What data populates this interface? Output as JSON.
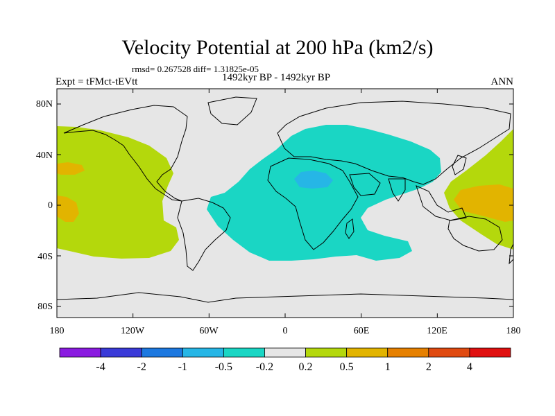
{
  "header": {
    "title": "Velocity Potential at 200 hPa (km2/s)",
    "stats": "rmsd= 0.267528 diff= 1.31825e-05",
    "experiment": "Expt = tFMct-tEVtt",
    "period": "1492kyr BP - 1492kyr BP",
    "season": "ANN"
  },
  "axes": {
    "lat_ticks": [
      "80N",
      "40N",
      "0",
      "40S",
      "80S"
    ],
    "lon_ticks": [
      "180",
      "120W",
      "60W",
      "0",
      "60E",
      "120E",
      "180"
    ]
  },
  "colorbar": {
    "colors": [
      "#8a1be0",
      "#3a3ad8",
      "#1c78e0",
      "#26b6e6",
      "#1ad6c4",
      "#e6e6e6",
      "#b4d80c",
      "#e2b400",
      "#e68000",
      "#e04a10",
      "#e01010"
    ],
    "labels": [
      "-4",
      "-2",
      "-1",
      "-0.5",
      "-0.2",
      "0.2",
      "0.5",
      "1",
      "2",
      "4"
    ]
  },
  "map_colors": {
    "background": "#e6e6e6",
    "negative_shade": "#1ad6c4",
    "negative_core": "#26b6e6",
    "positive_shade": "#b4d80c",
    "positive_core": "#e2b400",
    "coast": "#000000"
  }
}
